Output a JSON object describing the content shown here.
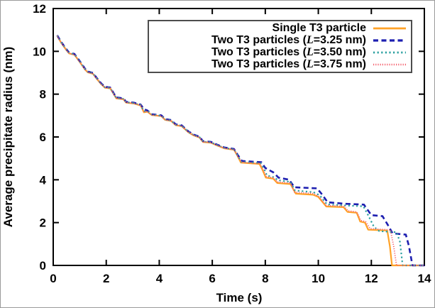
{
  "chart_data": {
    "type": "line",
    "title": "",
    "xlabel": "Time (s)",
    "ylabel": "Average precipitate radius (nm)",
    "xlim": [
      0,
      14
    ],
    "ylim": [
      0,
      12
    ],
    "xticks": [
      0,
      2,
      4,
      6,
      8,
      10,
      12,
      14
    ],
    "yticks": [
      0,
      2,
      4,
      6,
      8,
      10,
      12
    ],
    "grid": false,
    "legend_position": "top-right",
    "axis_color": "#000000",
    "background_color": "#ffffff",
    "series": [
      {
        "name": "Single T3 particle",
        "color": "#ffa227",
        "style": "solid",
        "width": 2.2,
        "points": [
          [
            0.15,
            10.72
          ],
          [
            0.3,
            10.4
          ],
          [
            0.5,
            10.05
          ],
          [
            0.6,
            9.9
          ],
          [
            0.8,
            9.84
          ],
          [
            1.0,
            9.5
          ],
          [
            1.2,
            9.15
          ],
          [
            1.3,
            9.02
          ],
          [
            1.5,
            8.95
          ],
          [
            1.62,
            8.75
          ],
          [
            1.8,
            8.48
          ],
          [
            1.95,
            8.3
          ],
          [
            2.15,
            8.27
          ],
          [
            2.3,
            7.97
          ],
          [
            2.38,
            7.8
          ],
          [
            2.65,
            7.76
          ],
          [
            2.75,
            7.6
          ],
          [
            3.05,
            7.56
          ],
          [
            3.3,
            7.47
          ],
          [
            3.42,
            7.15
          ],
          [
            3.55,
            7.18
          ],
          [
            3.72,
            7.02
          ],
          [
            4.08,
            6.97
          ],
          [
            4.22,
            6.8
          ],
          [
            4.45,
            6.75
          ],
          [
            4.62,
            6.55
          ],
          [
            4.85,
            6.5
          ],
          [
            5.1,
            6.22
          ],
          [
            5.3,
            6.07
          ],
          [
            5.52,
            5.97
          ],
          [
            5.65,
            5.76
          ],
          [
            5.95,
            5.73
          ],
          [
            6.15,
            5.62
          ],
          [
            6.45,
            5.47
          ],
          [
            6.82,
            5.4
          ],
          [
            6.95,
            5.12
          ],
          [
            7.08,
            4.8
          ],
          [
            7.78,
            4.74
          ],
          [
            7.9,
            4.45
          ],
          [
            8.02,
            4.1
          ],
          [
            8.3,
            4.05
          ],
          [
            8.45,
            3.85
          ],
          [
            8.95,
            3.8
          ],
          [
            9.15,
            3.35
          ],
          [
            9.8,
            3.3
          ],
          [
            10.0,
            3.2
          ],
          [
            10.3,
            2.75
          ],
          [
            10.95,
            2.72
          ],
          [
            11.1,
            2.5
          ],
          [
            11.45,
            2.46
          ],
          [
            11.58,
            2.05
          ],
          [
            11.76,
            2.0
          ],
          [
            11.88,
            1.67
          ],
          [
            12.6,
            1.63
          ],
          [
            12.7,
            0.9
          ],
          [
            12.78,
            0
          ],
          [
            14,
            0
          ]
        ]
      },
      {
        "name": "Two T3 particles (L=3.25 nm)",
        "color": "#1d1fb0",
        "style": "dashed",
        "width": 2.6,
        "points": [
          [
            0.15,
            10.75
          ],
          [
            0.3,
            10.44
          ],
          [
            0.5,
            10.09
          ],
          [
            0.6,
            9.94
          ],
          [
            0.8,
            9.88
          ],
          [
            1.0,
            9.54
          ],
          [
            1.2,
            9.19
          ],
          [
            1.3,
            9.06
          ],
          [
            1.5,
            8.99
          ],
          [
            1.62,
            8.79
          ],
          [
            1.8,
            8.52
          ],
          [
            1.95,
            8.34
          ],
          [
            2.15,
            8.31
          ],
          [
            2.3,
            8.01
          ],
          [
            2.38,
            7.85
          ],
          [
            2.65,
            7.8
          ],
          [
            2.75,
            7.64
          ],
          [
            3.05,
            7.6
          ],
          [
            3.3,
            7.51
          ],
          [
            3.42,
            7.3
          ],
          [
            3.55,
            7.24
          ],
          [
            3.72,
            7.06
          ],
          [
            4.08,
            7.01
          ],
          [
            4.22,
            6.84
          ],
          [
            4.45,
            6.79
          ],
          [
            4.62,
            6.59
          ],
          [
            4.85,
            6.54
          ],
          [
            5.1,
            6.26
          ],
          [
            5.3,
            6.11
          ],
          [
            5.52,
            6.01
          ],
          [
            5.65,
            5.8
          ],
          [
            5.95,
            5.77
          ],
          [
            6.15,
            5.66
          ],
          [
            6.45,
            5.51
          ],
          [
            6.82,
            5.44
          ],
          [
            6.95,
            5.18
          ],
          [
            7.12,
            4.88
          ],
          [
            7.85,
            4.82
          ],
          [
            8.0,
            4.55
          ],
          [
            8.3,
            4.35
          ],
          [
            8.5,
            4.1
          ],
          [
            8.9,
            4.0
          ],
          [
            9.1,
            3.65
          ],
          [
            9.95,
            3.6
          ],
          [
            10.15,
            3.3
          ],
          [
            10.35,
            2.95
          ],
          [
            11.0,
            2.88
          ],
          [
            11.72,
            2.84
          ],
          [
            12.0,
            2.35
          ],
          [
            12.42,
            2.3
          ],
          [
            12.62,
            1.9
          ],
          [
            12.8,
            1.5
          ],
          [
            13.3,
            1.44
          ],
          [
            13.42,
            0.9
          ],
          [
            13.55,
            0
          ],
          [
            14,
            0
          ]
        ]
      },
      {
        "name": "Two T3 particles (L=3.50 nm)",
        "color": "#2ba0a0",
        "style": "dotted",
        "width": 2.2,
        "points": [
          [
            0.15,
            10.74
          ],
          [
            0.3,
            10.42
          ],
          [
            0.5,
            10.07
          ],
          [
            0.6,
            9.92
          ],
          [
            0.8,
            9.86
          ],
          [
            1.0,
            9.52
          ],
          [
            1.2,
            9.17
          ],
          [
            1.3,
            9.04
          ],
          [
            1.5,
            8.97
          ],
          [
            1.62,
            8.77
          ],
          [
            1.8,
            8.5
          ],
          [
            1.95,
            8.32
          ],
          [
            2.15,
            8.29
          ],
          [
            2.3,
            7.99
          ],
          [
            2.38,
            7.82
          ],
          [
            2.65,
            7.78
          ],
          [
            2.75,
            7.62
          ],
          [
            3.05,
            7.58
          ],
          [
            3.3,
            7.49
          ],
          [
            3.42,
            7.2
          ],
          [
            3.55,
            7.21
          ],
          [
            3.72,
            7.04
          ],
          [
            4.08,
            6.99
          ],
          [
            4.22,
            6.82
          ],
          [
            4.45,
            6.77
          ],
          [
            4.62,
            6.57
          ],
          [
            4.85,
            6.52
          ],
          [
            5.1,
            6.24
          ],
          [
            5.3,
            6.09
          ],
          [
            5.52,
            5.99
          ],
          [
            5.65,
            5.78
          ],
          [
            5.95,
            5.75
          ],
          [
            6.15,
            5.64
          ],
          [
            6.45,
            5.49
          ],
          [
            6.82,
            5.42
          ],
          [
            6.95,
            5.15
          ],
          [
            7.1,
            4.84
          ],
          [
            7.82,
            4.78
          ],
          [
            7.96,
            4.5
          ],
          [
            8.06,
            4.2
          ],
          [
            8.32,
            4.12
          ],
          [
            8.48,
            3.98
          ],
          [
            8.95,
            3.9
          ],
          [
            9.12,
            3.5
          ],
          [
            9.82,
            3.42
          ],
          [
            10.05,
            3.28
          ],
          [
            10.33,
            2.85
          ],
          [
            11.0,
            2.8
          ],
          [
            11.7,
            2.76
          ],
          [
            11.9,
            2.3
          ],
          [
            12.1,
            1.8
          ],
          [
            12.3,
            1.6
          ],
          [
            12.95,
            1.55
          ],
          [
            13.08,
            1.1
          ],
          [
            13.18,
            0
          ],
          [
            14,
            0
          ]
        ]
      },
      {
        "name": "Two T3 particles (L=3.75 nm)",
        "color": "#f4606e",
        "style": "fine-dotted",
        "width": 1.8,
        "points": [
          [
            0.15,
            10.73
          ],
          [
            0.3,
            10.41
          ],
          [
            0.5,
            10.06
          ],
          [
            0.6,
            9.91
          ],
          [
            0.8,
            9.85
          ],
          [
            1.0,
            9.51
          ],
          [
            1.2,
            9.16
          ],
          [
            1.3,
            9.03
          ],
          [
            1.5,
            8.96
          ],
          [
            1.62,
            8.76
          ],
          [
            1.8,
            8.49
          ],
          [
            1.95,
            8.31
          ],
          [
            2.15,
            8.28
          ],
          [
            2.3,
            7.98
          ],
          [
            2.38,
            7.81
          ],
          [
            2.65,
            7.77
          ],
          [
            2.75,
            7.61
          ],
          [
            3.05,
            7.57
          ],
          [
            3.3,
            7.48
          ],
          [
            3.42,
            7.17
          ],
          [
            3.55,
            7.19
          ],
          [
            3.72,
            7.03
          ],
          [
            4.08,
            6.98
          ],
          [
            4.22,
            6.81
          ],
          [
            4.45,
            6.76
          ],
          [
            4.62,
            6.56
          ],
          [
            4.85,
            6.51
          ],
          [
            5.1,
            6.23
          ],
          [
            5.3,
            6.08
          ],
          [
            5.52,
            5.98
          ],
          [
            5.65,
            5.77
          ],
          [
            5.95,
            5.74
          ],
          [
            6.15,
            5.63
          ],
          [
            6.45,
            5.48
          ],
          [
            6.82,
            5.41
          ],
          [
            6.95,
            5.13
          ],
          [
            7.1,
            4.82
          ],
          [
            7.8,
            4.76
          ],
          [
            7.94,
            4.42
          ],
          [
            8.04,
            4.15
          ],
          [
            8.3,
            4.09
          ],
          [
            8.45,
            3.9
          ],
          [
            8.95,
            3.85
          ],
          [
            9.1,
            3.42
          ],
          [
            9.8,
            3.36
          ],
          [
            10.0,
            3.24
          ],
          [
            10.3,
            2.8
          ],
          [
            10.97,
            2.76
          ],
          [
            11.12,
            2.55
          ],
          [
            11.45,
            2.5
          ],
          [
            11.6,
            2.1
          ],
          [
            11.78,
            2.05
          ],
          [
            11.95,
            1.72
          ],
          [
            12.72,
            1.66
          ],
          [
            12.85,
            0.85
          ],
          [
            12.95,
            0
          ],
          [
            14,
            0
          ]
        ]
      }
    ]
  },
  "legend": {
    "entries": [
      {
        "pre": "Single T3 particle",
        "italic": "",
        "post": ""
      },
      {
        "pre": "Two T3 particles (",
        "italic": "L",
        "post": "=3.25 nm)"
      },
      {
        "pre": "Two T3 particles (",
        "italic": "L",
        "post": "=3.50 nm)"
      },
      {
        "pre": "Two T3 particles (",
        "italic": "L",
        "post": "=3.75 nm)"
      }
    ]
  }
}
